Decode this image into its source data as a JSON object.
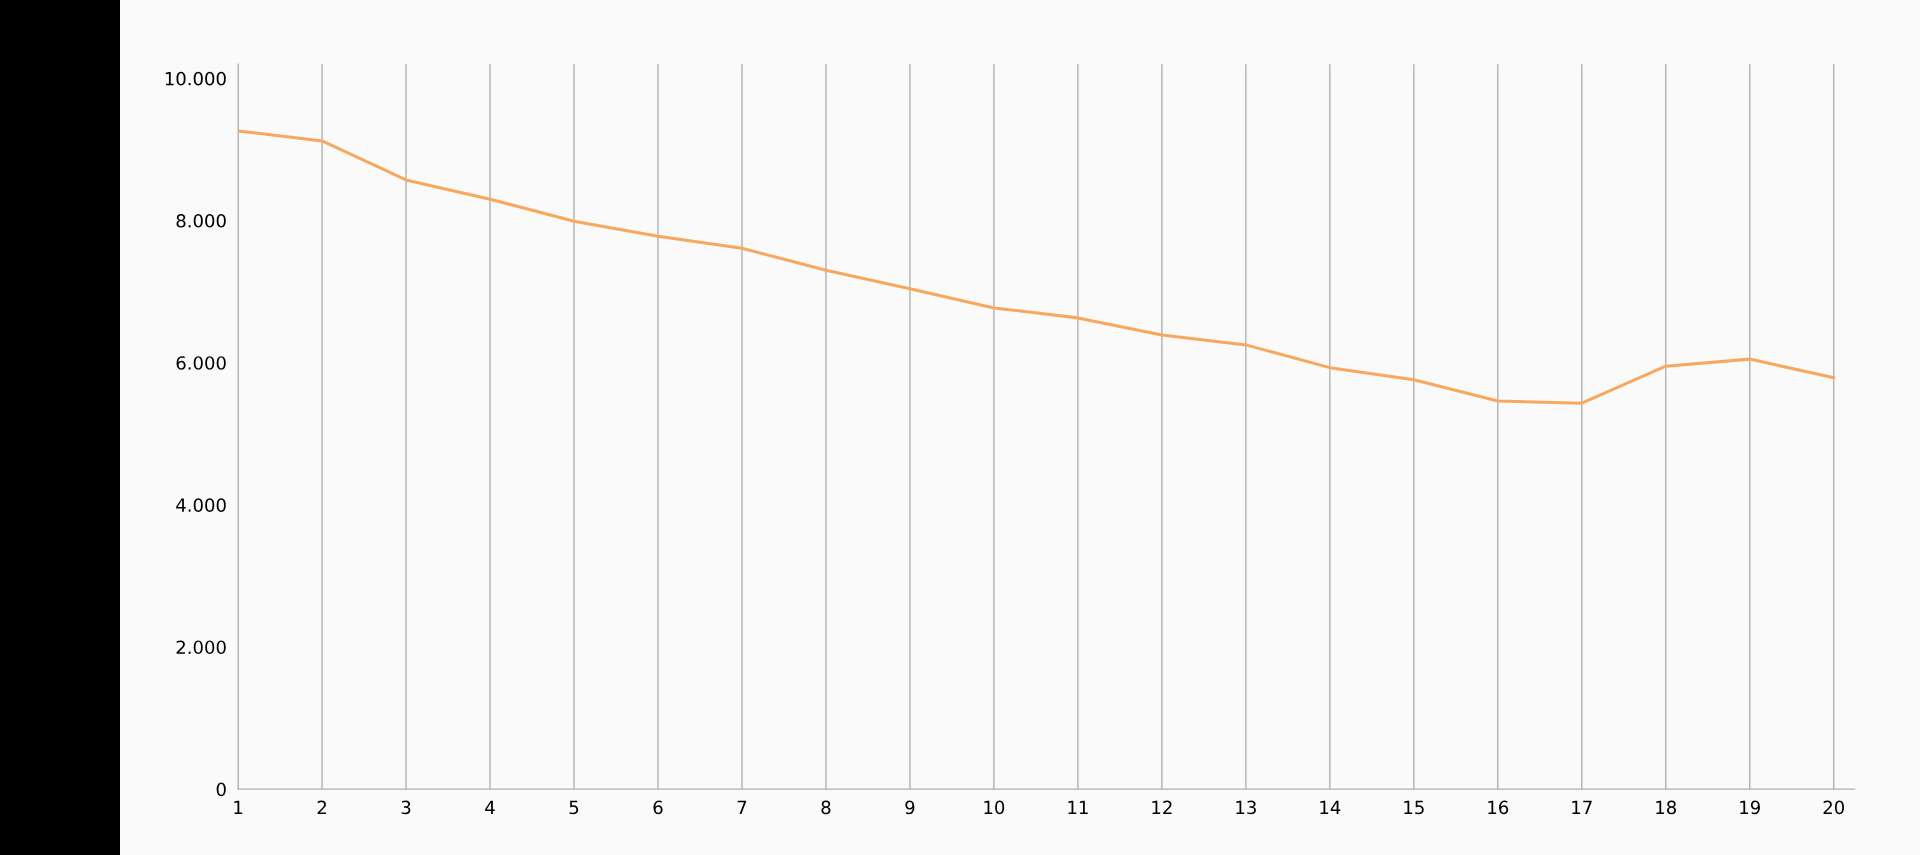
{
  "chart_data": {
    "type": "line",
    "x": [
      1,
      2,
      3,
      4,
      5,
      6,
      7,
      8,
      9,
      10,
      11,
      12,
      13,
      14,
      15,
      16,
      17,
      18,
      19,
      20
    ],
    "series": [
      {
        "color": "#f7a85e",
        "values": [
          9260,
          9120,
          8570,
          8300,
          7990,
          7780,
          7610,
          7300,
          7040,
          6770,
          6630,
          6390,
          6250,
          5930,
          5760,
          5460,
          5430,
          5950,
          6050,
          5790
        ]
      }
    ],
    "xlim": [
      1,
      20.25
    ],
    "xticks": [
      1,
      2,
      3,
      4,
      5,
      6,
      7,
      8,
      9,
      10,
      11,
      12,
      13,
      14,
      15,
      16,
      17,
      18,
      19,
      20
    ],
    "ylim": [
      0,
      10200
    ],
    "yticks": [
      0,
      {
        "value": 2000,
        "label": "2.000"
      },
      {
        "value": 4000,
        "label": "4.000"
      },
      {
        "value": 6000,
        "label": "6.000"
      },
      {
        "value": 8000,
        "label": "8.000"
      },
      {
        "value": 10000,
        "label": "10.000"
      }
    ],
    "grid": "x",
    "marker": "none",
    "line_style": "solid",
    "legend": false
  }
}
